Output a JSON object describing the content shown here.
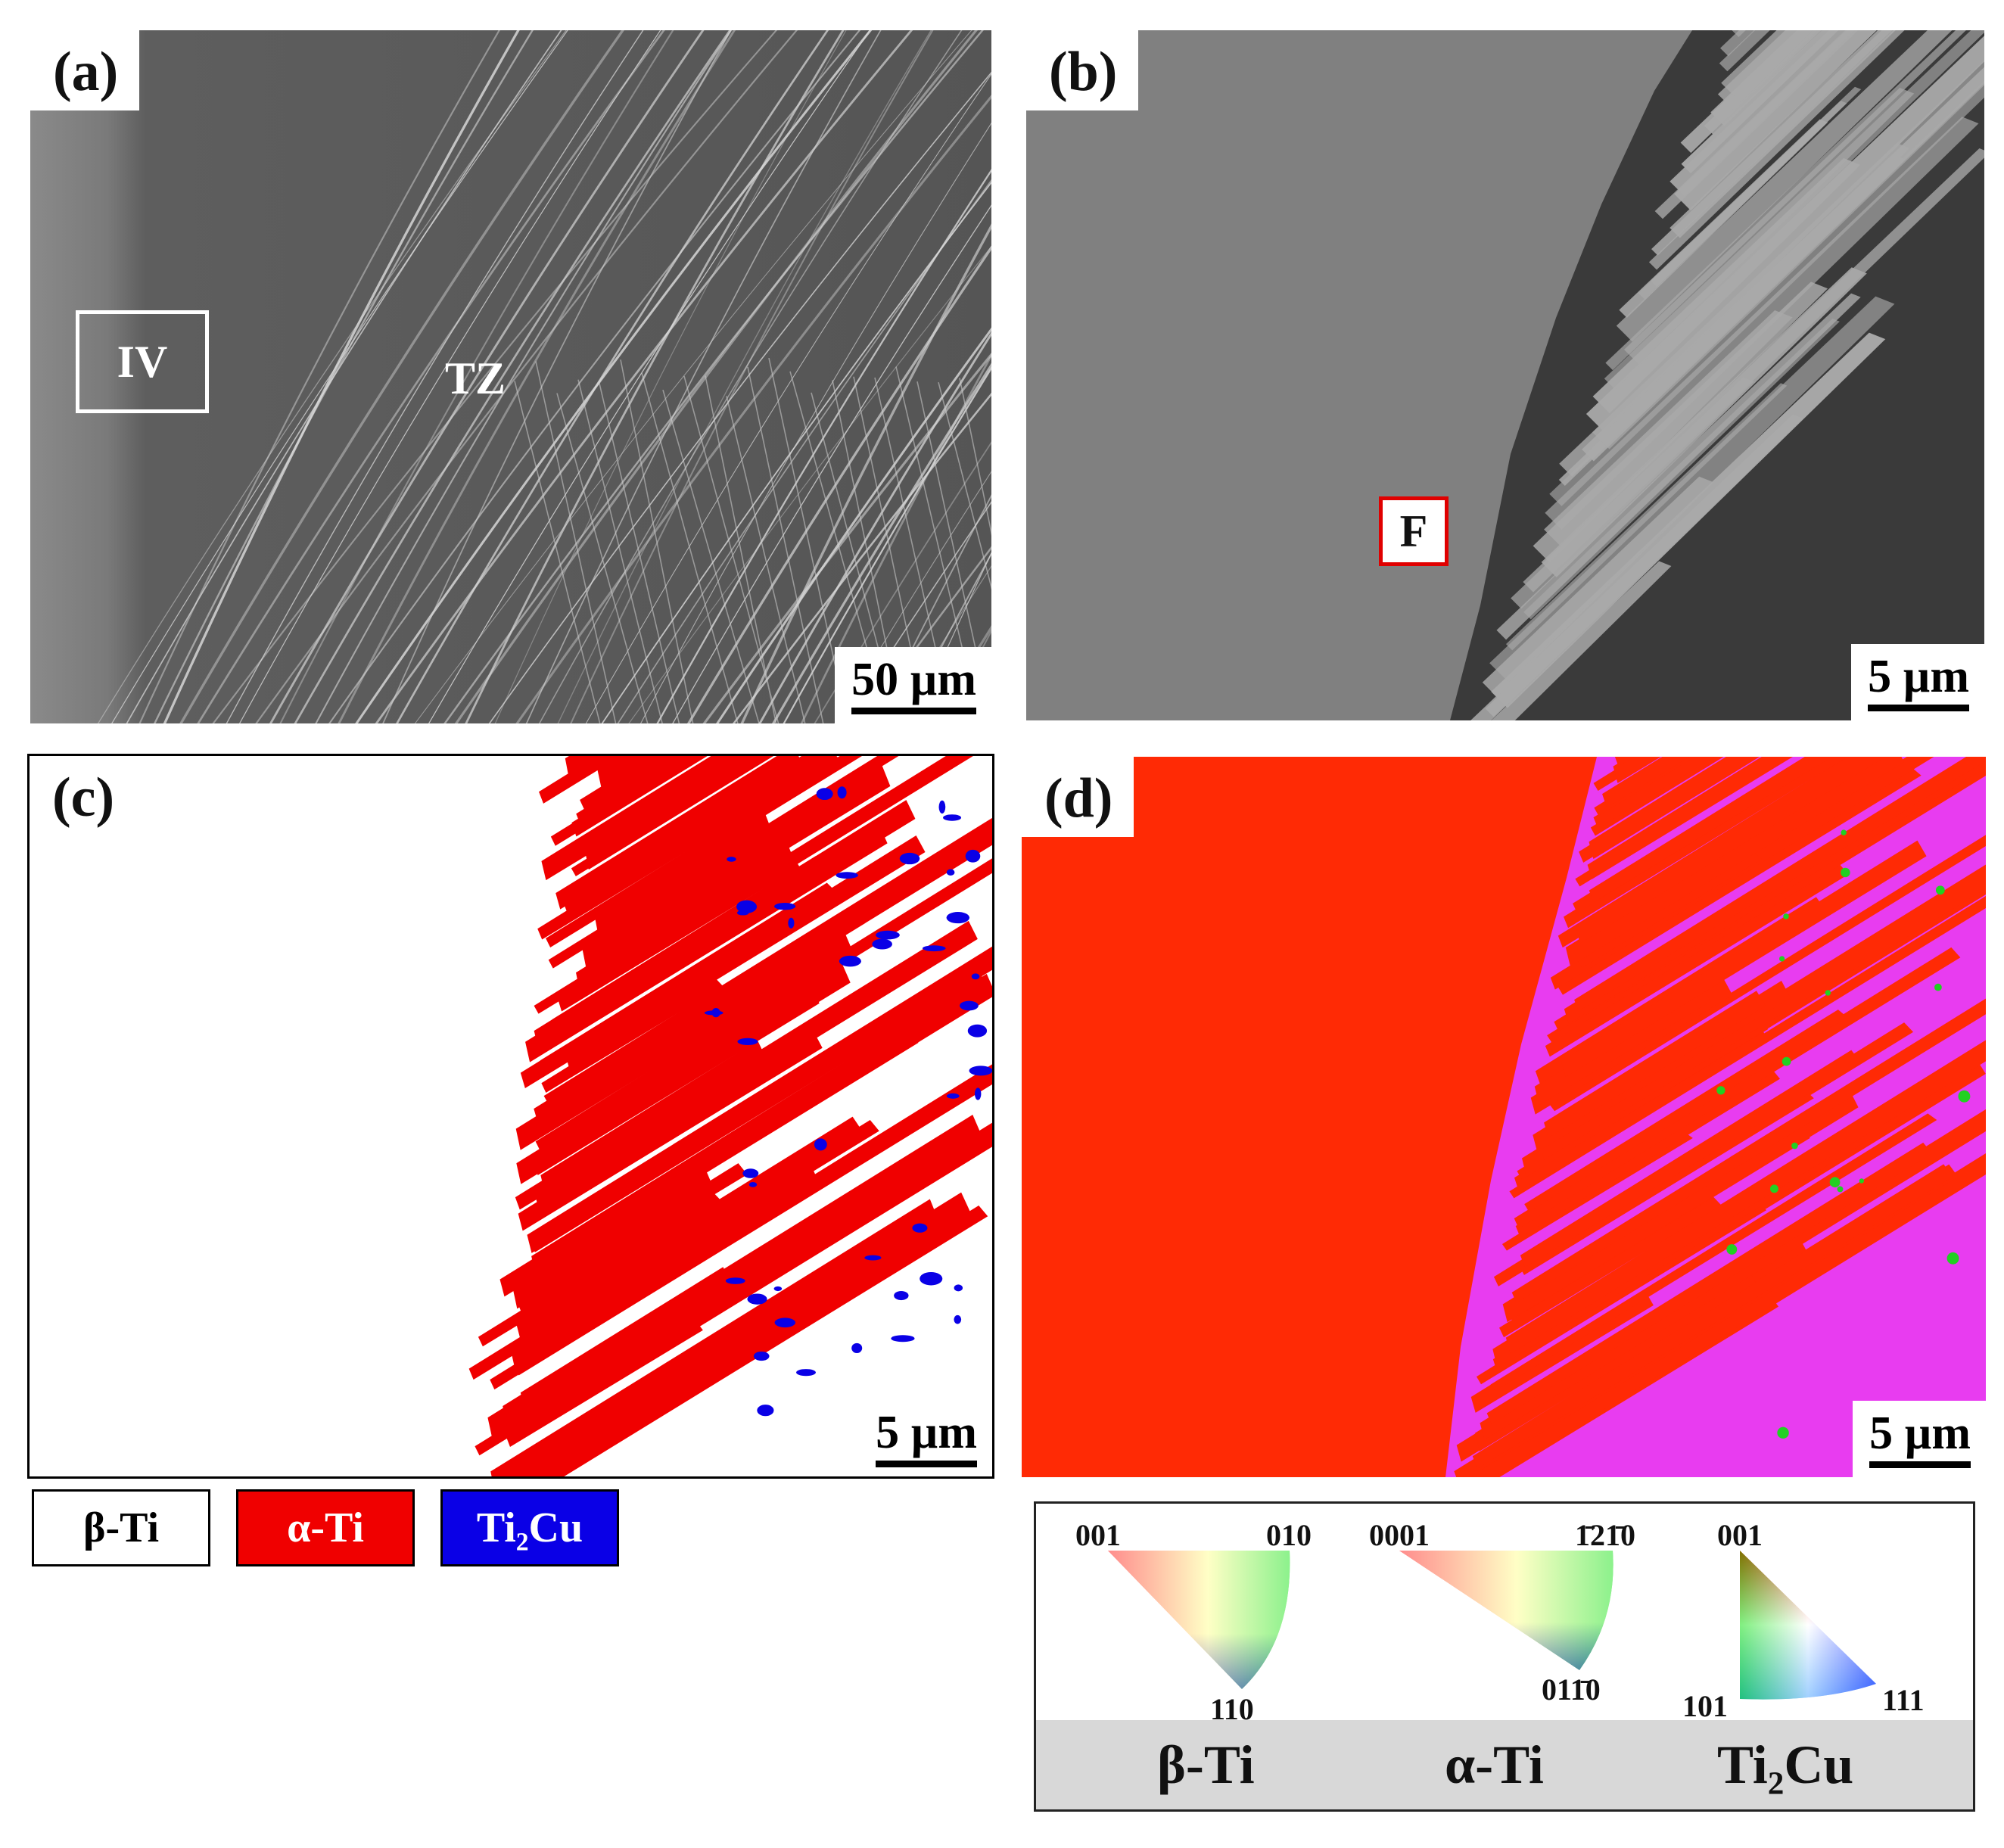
{
  "panels": {
    "a": {
      "label": "(a)",
      "scale_bar": "50 µm",
      "annotations": {
        "box_label": "IV",
        "region_label": "TZ"
      }
    },
    "b": {
      "label": "(b)",
      "scale_bar": "5 µm",
      "annotations": {
        "box_label": "F"
      }
    },
    "c": {
      "label": "(c)",
      "scale_bar": "5 µm"
    },
    "d": {
      "label": "(d)",
      "scale_bar": "5 µm"
    }
  },
  "phase_legend": [
    {
      "label": "β-Ti",
      "color": "#ffffff",
      "text_color": "#000000"
    },
    {
      "label": "α-Ti",
      "color": "#f00000",
      "text_color": "#ffffff"
    },
    {
      "label": "Ti₂Cu",
      "color": "#0a00e6",
      "text_color": "#ffffff"
    }
  ],
  "ipf_key": {
    "beta": {
      "name": "β-Ti",
      "corners": [
        "001",
        "010",
        "110"
      ]
    },
    "alpha": {
      "name": "α-Ti",
      "corners": [
        "0001",
        "1̄21̄0",
        "011̄0"
      ]
    },
    "ti2cu": {
      "name": "Ti₂Cu",
      "corners": [
        "001",
        "101",
        "111"
      ]
    }
  },
  "colors": {
    "alpha_ti": "#f00000",
    "ti2cu": "#0a00e6",
    "ipf_red": "#ff2a05",
    "ipf_magenta": "#e83cf0",
    "box_white": "#ffffff",
    "box_red": "#e00000"
  }
}
